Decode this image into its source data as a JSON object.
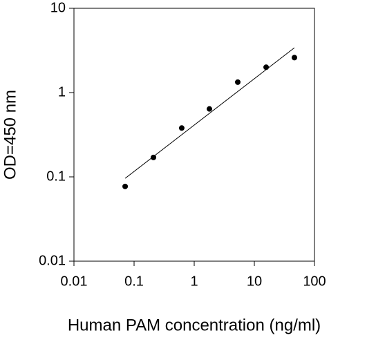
{
  "chart_data": {
    "type": "scatter",
    "x_label": "Human PAM concentration (ng/ml)",
    "y_label": "OD=450 nm",
    "x_scale": "log",
    "y_scale": "log",
    "x": [
      0.071,
      0.21,
      0.62,
      1.79,
      5.3,
      15.7,
      46.4
    ],
    "values": [
      0.077,
      0.17,
      0.38,
      0.64,
      1.33,
      2.0,
      2.6
    ],
    "color": "#000000",
    "fit_line": {
      "x": [
        0.071,
        46.4
      ],
      "values": [
        0.096,
        3.4
      ],
      "color": "#000000"
    },
    "xlim": [
      0.01,
      100
    ],
    "xticks": [
      0.01,
      0.1,
      1,
      10,
      100
    ],
    "ylim": [
      0.01,
      10
    ],
    "yticks": [
      0.01,
      0.1,
      1,
      10
    ],
    "grid": false
  }
}
